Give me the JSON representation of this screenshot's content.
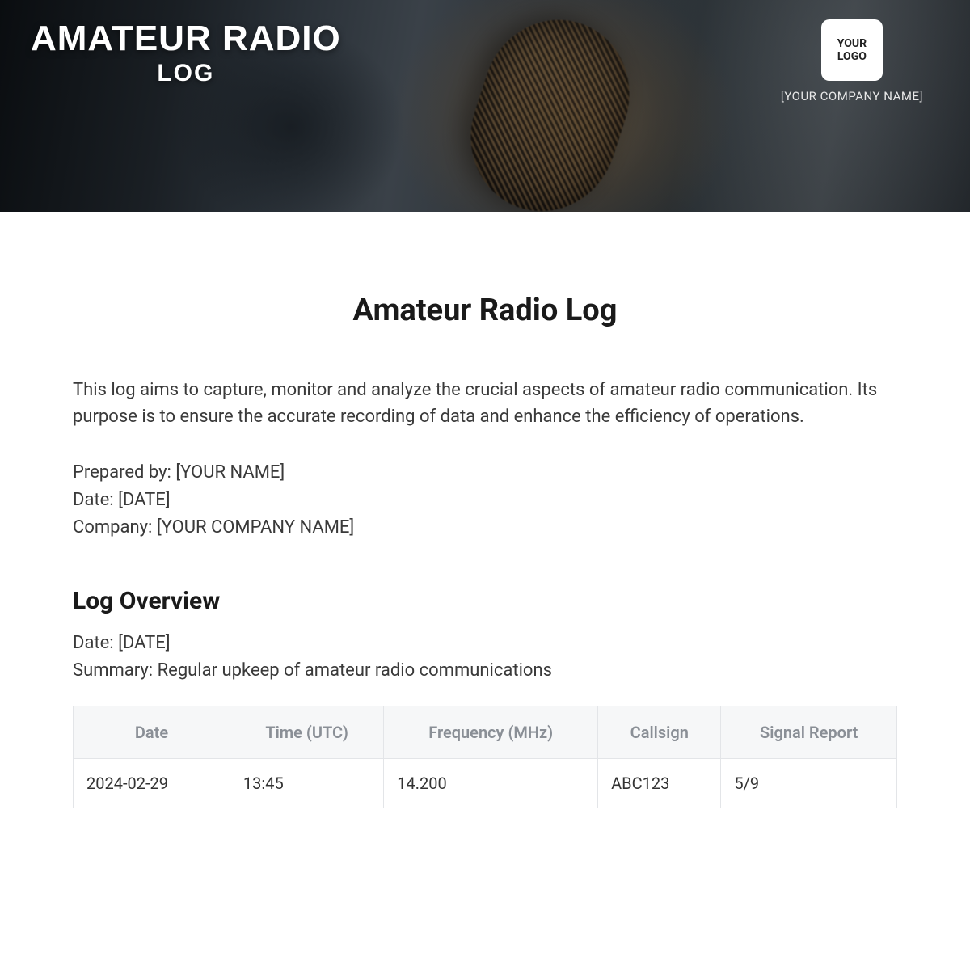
{
  "hero": {
    "title_line1": "AMATEUR RADIO",
    "title_line2": "LOG",
    "logo_line1": "YOUR",
    "logo_line2": "LOGO",
    "company_name": "[YOUR COMPANY NAME]"
  },
  "document": {
    "title": "Amateur Radio Log",
    "intro": "This log aims to capture, monitor and analyze the crucial aspects of amateur radio communication. Its purpose is to ensure the accurate recording of data and enhance the efficiency of operations.",
    "prepared_by_label": "Prepared by: ",
    "prepared_by_value": "[YOUR NAME]",
    "date_label": "Date: ",
    "date_value": "[DATE]",
    "company_label": "Company: ",
    "company_value": "[YOUR COMPANY NAME]"
  },
  "overview": {
    "heading": "Log Overview",
    "date_label": "Date: ",
    "date_value": "[DATE]",
    "summary_label": "Summary: ",
    "summary_value": "Regular upkeep of amateur radio communications"
  },
  "table": {
    "columns": [
      "Date",
      "Time (UTC)",
      "Frequency (MHz)",
      "Callsign",
      "Signal Report"
    ],
    "rows": [
      [
        "2024-02-29",
        "13:45",
        "14.200",
        "ABC123",
        "5/9"
      ]
    ],
    "header_bg": "#f6f7f8",
    "header_color": "#8a8f96",
    "border_color": "#e3e5e8",
    "cell_color": "#333333"
  }
}
